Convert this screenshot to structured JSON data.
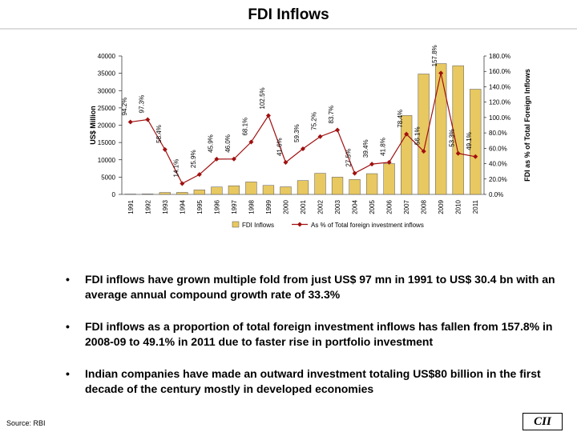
{
  "chart_data": {
    "type": "bar",
    "title": "FDI Inflows",
    "categories": [
      "1991",
      "1992",
      "1993",
      "1994",
      "1995",
      "1996",
      "1997",
      "1998",
      "1999",
      "2000",
      "2001",
      "2002",
      "2003",
      "2004",
      "2005",
      "2006",
      "2007",
      "2008",
      "2009",
      "2010",
      "2011"
    ],
    "series": [
      {
        "name": "FDI Inflows",
        "type": "bar",
        "color": "#e8c860",
        "values": [
          97,
          130,
          560,
          590,
          1300,
          2150,
          2500,
          3600,
          2600,
          2200,
          4000,
          6100,
          5000,
          4300,
          6000,
          8900,
          22800,
          34800,
          37800,
          37200,
          30400
        ]
      },
      {
        "name": "As % of Total foreign investment inflows",
        "type": "line",
        "axis": "y2",
        "color": "#a01010",
        "values": [
          94.2,
          97.3,
          58.4,
          14.1,
          25.9,
          45.9,
          46.0,
          68.1,
          102.5,
          41.6,
          59.3,
          75.2,
          83.7,
          27.5,
          39.4,
          41.8,
          78.4,
          56.1,
          157.8,
          53.3,
          49.1
        ],
        "value_labels": [
          "94.2%",
          "97.3%",
          "58.4%",
          "14.1%",
          "25.9%",
          "45.9%",
          "46.0%",
          "68.1%",
          "102.5%",
          "41.6%",
          "59.3%",
          "75.2%",
          "83.7%",
          "27.5%",
          "39.4%",
          "41.8%",
          "78.4%",
          "56.1%",
          "157.8%",
          "53.3%",
          "49.1%"
        ]
      }
    ],
    "ylim": [
      0,
      40000
    ],
    "yticks": [
      0,
      5000,
      10000,
      15000,
      20000,
      25000,
      30000,
      35000,
      40000
    ],
    "y2lim": [
      0,
      180
    ],
    "y2ticks": [
      {
        "value": 0,
        "label": "0.0%"
      },
      {
        "value": 20,
        "label": "20.0%"
      },
      {
        "value": 40,
        "label": "40.0%"
      },
      {
        "value": 60,
        "label": "60.0%"
      },
      {
        "value": 80,
        "label": "80.0%"
      },
      {
        "value": 100,
        "label": "100.0%"
      },
      {
        "value": 120,
        "label": "120.0%"
      },
      {
        "value": 140,
        "label": "140.0%"
      },
      {
        "value": 160,
        "label": "160.0%"
      },
      {
        "value": 180,
        "label": "180.0%"
      }
    ],
    "y_label": "US$ Million",
    "y2_label": "FDI as % of Total Foreign Inflows",
    "legend": "bottom"
  },
  "notes": [
    "FDI inflows have grown multiple fold from just US$ 97 mn in 1991 to US$ 30.4 bn with an average annual compound growth rate of 33.3%",
    "FDI inflows as a proportion of total foreign investment inflows has fallen from 157.8% in 2008-09 to 49.1% in 2011 due to faster rise in portfolio investment",
    "Indian companies have made an outward investment totaling US$80 billion in the first decade of the century mostly in developed economies"
  ],
  "source": "Source: RBI",
  "logo": "CII"
}
